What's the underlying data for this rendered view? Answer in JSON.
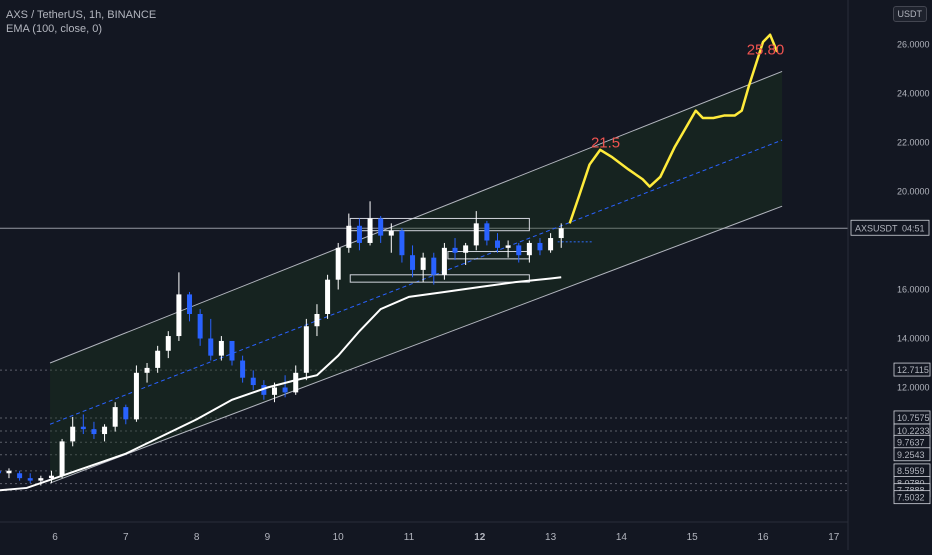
{
  "header": {
    "symbol_title": "AXS / TetherUS, 1h, BINANCE",
    "indicator": "EMA (100, close, 0)",
    "currency": "USDT"
  },
  "price_tag": {
    "symbol": "AXSUSDT",
    "countdown": "04:51",
    "value": 18.5
  },
  "colors": {
    "background": "#131722",
    "candle_up": "#ffffff",
    "candle_down": "#2962ff",
    "ema": "#ffffff",
    "channel": "#b2b5be",
    "channel_mid": "#2962ff",
    "channel_fill": "#1e3a1e",
    "projection": "#ffeb3b",
    "annotation": "#ef5350"
  },
  "chart_data": {
    "type": "candlestick",
    "title": "AXS / TetherUS, 1h, BINANCE",
    "x_ticks": [
      "6",
      "7",
      "8",
      "9",
      "10",
      "11",
      "12",
      "13",
      "14",
      "15",
      "16",
      "17"
    ],
    "x_range": [
      5.2,
      17.5
    ],
    "y_range": [
      7.5,
      27.6
    ],
    "y_ticks": [
      {
        "label": "26.0000",
        "value": 26.0
      },
      {
        "label": "24.0000",
        "value": 24.0
      },
      {
        "label": "22.0000",
        "value": 22.0
      },
      {
        "label": "20.0000",
        "value": 20.0
      },
      {
        "label": "16.0000",
        "value": 16.0
      },
      {
        "label": "14.0000",
        "value": 14.0
      },
      {
        "label": "12.0000",
        "value": 12.0
      }
    ],
    "y_highlight_ticks": [
      {
        "label": "12.7115",
        "value": 12.7115
      },
      {
        "label": "10.7575",
        "value": 10.7575
      },
      {
        "label": "10.2233",
        "value": 10.2233
      },
      {
        "label": "9.7637",
        "value": 9.7637
      },
      {
        "label": "9.2543",
        "value": 9.2543
      },
      {
        "label": "8.5959",
        "value": 8.5959
      },
      {
        "label": "8.0780",
        "value": 8.078
      },
      {
        "label": "7.7888",
        "value": 7.7888
      },
      {
        "label": "7.5032",
        "value": 7.5032
      }
    ],
    "horizontal_levels": [
      12.7115,
      10.7575,
      10.2233,
      9.7637,
      9.2543,
      8.5959,
      8.078,
      7.7888
    ],
    "price_line": 18.5,
    "close_dotted_level": 17.95,
    "channel": {
      "x_start": 5.93,
      "x_end": 16.27,
      "upper": [
        13.0,
        24.9
      ],
      "middle": [
        10.5,
        22.1
      ],
      "lower": [
        8.1,
        19.4
      ]
    },
    "boxes": [
      {
        "x0": 10.17,
        "x1": 12.7,
        "low": 18.4,
        "high": 18.9
      },
      {
        "x0": 10.17,
        "x1": 12.7,
        "low": 16.3,
        "high": 16.6
      },
      {
        "x0": 11.55,
        "x1": 12.7,
        "low": 17.25,
        "high": 17.55
      }
    ],
    "annotations": [
      {
        "text": "21.5",
        "x": 13.57,
        "y": 21.8
      },
      {
        "text": "25.80",
        "x": 15.77,
        "y": 25.6
      }
    ],
    "ema": [
      [
        5.2,
        7.8
      ],
      [
        5.6,
        7.9
      ],
      [
        6.0,
        8.3
      ],
      [
        6.5,
        8.8
      ],
      [
        7.0,
        9.3
      ],
      [
        7.5,
        10.0
      ],
      [
        8.0,
        10.7
      ],
      [
        8.5,
        11.5
      ],
      [
        9.0,
        12.0
      ],
      [
        9.4,
        12.3
      ],
      [
        9.7,
        12.5
      ],
      [
        10.0,
        13.3
      ],
      [
        10.3,
        14.3
      ],
      [
        10.6,
        15.2
      ],
      [
        11.0,
        15.7
      ],
      [
        11.5,
        15.9
      ],
      [
        12.0,
        16.1
      ],
      [
        12.5,
        16.3
      ],
      [
        13.0,
        16.45
      ],
      [
        13.15,
        16.5
      ]
    ],
    "projection": [
      [
        13.27,
        18.7
      ],
      [
        13.4,
        19.8
      ],
      [
        13.55,
        21.1
      ],
      [
        13.7,
        21.7
      ],
      [
        13.87,
        21.4
      ],
      [
        14.1,
        20.9
      ],
      [
        14.3,
        20.5
      ],
      [
        14.4,
        20.2
      ],
      [
        14.55,
        20.6
      ],
      [
        14.75,
        21.8
      ],
      [
        14.95,
        22.8
      ],
      [
        15.05,
        23.3
      ],
      [
        15.15,
        23.0
      ],
      [
        15.3,
        23.0
      ],
      [
        15.45,
        23.1
      ],
      [
        15.6,
        23.1
      ],
      [
        15.7,
        23.3
      ],
      [
        15.8,
        24.3
      ],
      [
        15.9,
        25.2
      ],
      [
        16.0,
        26.1
      ],
      [
        16.1,
        26.4
      ],
      [
        16.2,
        25.7
      ]
    ],
    "candles": [
      [
        5.2,
        8.6,
        8.8,
        8.4,
        8.5
      ],
      [
        5.35,
        8.5,
        8.7,
        8.3,
        8.6
      ],
      [
        5.5,
        8.5,
        8.6,
        8.2,
        8.3
      ],
      [
        5.65,
        8.3,
        8.5,
        8.1,
        8.2
      ],
      [
        5.8,
        8.2,
        8.4,
        8.0,
        8.3
      ],
      [
        5.95,
        8.3,
        8.6,
        8.1,
        8.4
      ],
      [
        6.1,
        8.4,
        9.9,
        8.3,
        9.8
      ],
      [
        6.25,
        9.8,
        10.8,
        9.6,
        10.4
      ],
      [
        6.4,
        10.4,
        10.9,
        10.1,
        10.3
      ],
      [
        6.55,
        10.3,
        10.6,
        9.9,
        10.1
      ],
      [
        6.7,
        10.1,
        10.5,
        9.8,
        10.4
      ],
      [
        6.85,
        10.4,
        11.4,
        10.2,
        11.2
      ],
      [
        7.0,
        11.2,
        11.3,
        10.5,
        10.7
      ],
      [
        7.15,
        10.7,
        12.9,
        10.6,
        12.6
      ],
      [
        7.3,
        12.6,
        13.0,
        12.2,
        12.8
      ],
      [
        7.45,
        12.8,
        13.7,
        12.6,
        13.5
      ],
      [
        7.6,
        13.5,
        14.3,
        13.2,
        14.1
      ],
      [
        7.75,
        14.1,
        16.7,
        13.9,
        15.8
      ],
      [
        7.9,
        15.8,
        15.9,
        14.7,
        15.0
      ],
      [
        8.05,
        15.0,
        15.2,
        13.7,
        14.0
      ],
      [
        8.2,
        14.0,
        14.8,
        13.1,
        13.3
      ],
      [
        8.35,
        13.3,
        14.1,
        13.1,
        13.9
      ],
      [
        8.5,
        13.9,
        13.9,
        12.9,
        13.1
      ],
      [
        8.65,
        13.1,
        13.3,
        12.2,
        12.4
      ],
      [
        8.8,
        12.4,
        12.7,
        11.9,
        12.1
      ],
      [
        8.95,
        12.1,
        12.3,
        11.5,
        11.7
      ],
      [
        9.1,
        11.7,
        12.2,
        11.4,
        12.0
      ],
      [
        9.25,
        12.0,
        12.5,
        11.6,
        11.8
      ],
      [
        9.4,
        11.8,
        12.9,
        11.7,
        12.6
      ],
      [
        9.55,
        12.6,
        14.8,
        12.3,
        14.5
      ],
      [
        9.7,
        14.5,
        15.4,
        14.1,
        15.0
      ],
      [
        9.85,
        15.0,
        16.6,
        14.8,
        16.4
      ],
      [
        10.0,
        16.4,
        17.9,
        16.0,
        17.7
      ],
      [
        10.15,
        17.7,
        19.1,
        17.5,
        18.6
      ],
      [
        10.3,
        18.6,
        18.9,
        17.6,
        17.9
      ],
      [
        10.45,
        17.9,
        19.6,
        17.8,
        18.9
      ],
      [
        10.6,
        18.9,
        19.0,
        17.9,
        18.2
      ],
      [
        10.75,
        18.2,
        18.7,
        17.5,
        18.4
      ],
      [
        10.9,
        18.4,
        18.5,
        17.1,
        17.4
      ],
      [
        11.05,
        17.4,
        17.8,
        16.5,
        16.8
      ],
      [
        11.2,
        16.8,
        17.5,
        16.3,
        17.3
      ],
      [
        11.35,
        17.3,
        17.5,
        16.2,
        16.6
      ],
      [
        11.5,
        16.6,
        17.9,
        16.4,
        17.7
      ],
      [
        11.65,
        17.7,
        18.1,
        17.2,
        17.5
      ],
      [
        11.8,
        17.5,
        17.9,
        17.0,
        17.8
      ],
      [
        11.95,
        17.8,
        19.2,
        17.6,
        18.7
      ],
      [
        12.1,
        18.7,
        18.8,
        17.8,
        18.0
      ],
      [
        12.25,
        18.0,
        18.3,
        17.5,
        17.7
      ],
      [
        12.4,
        17.7,
        18.0,
        17.3,
        17.8
      ],
      [
        12.55,
        17.8,
        17.9,
        17.1,
        17.4
      ],
      [
        12.7,
        17.4,
        18.0,
        17.1,
        17.9
      ],
      [
        12.85,
        17.9,
        18.1,
        17.4,
        17.6
      ],
      [
        13.0,
        17.6,
        18.3,
        17.5,
        18.1
      ],
      [
        13.15,
        18.1,
        18.7,
        17.7,
        18.5
      ]
    ]
  }
}
